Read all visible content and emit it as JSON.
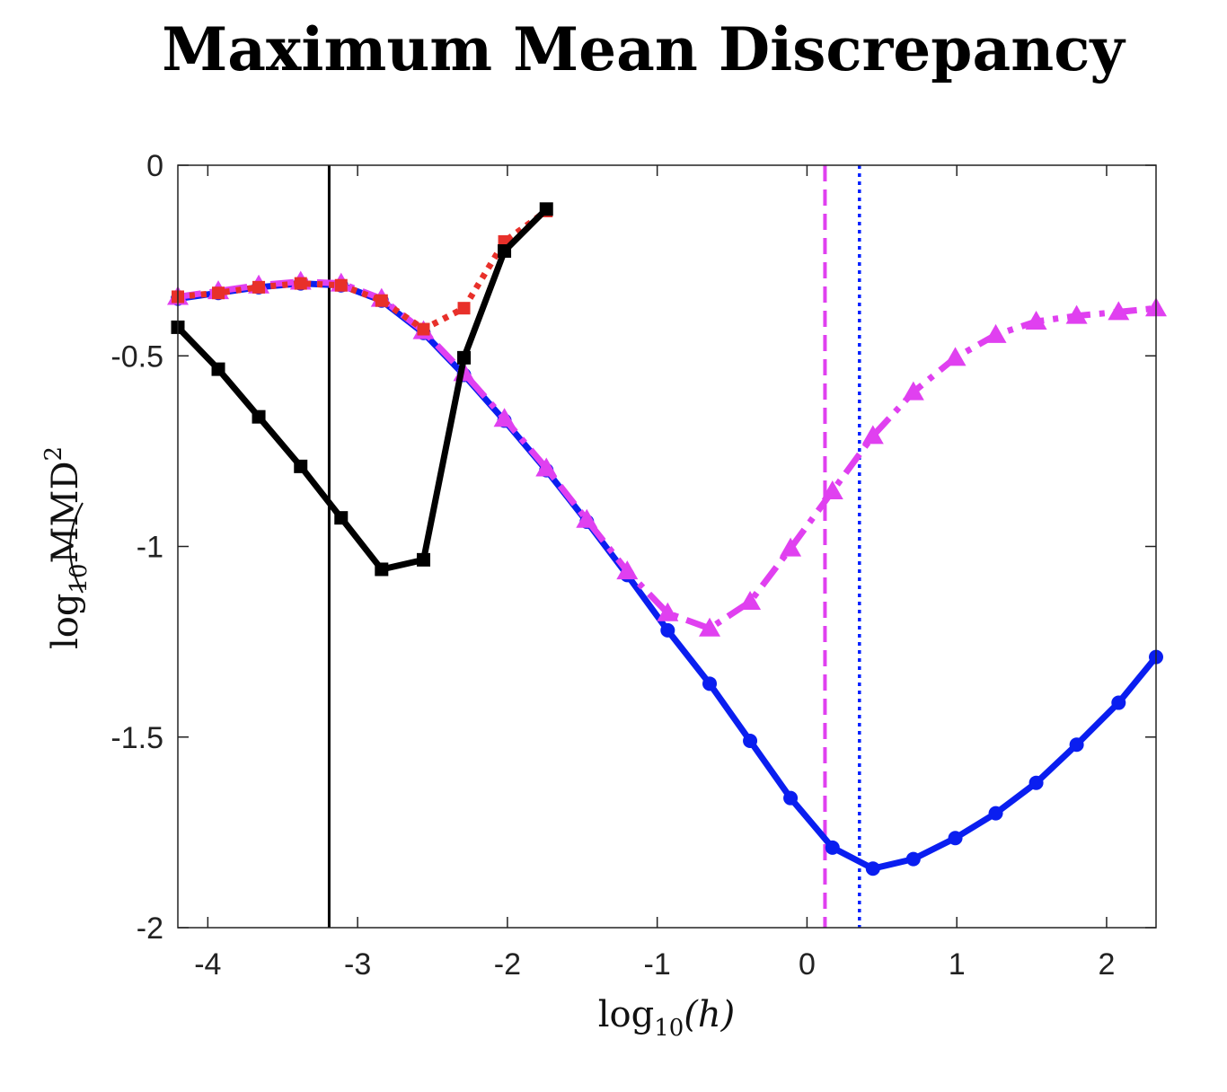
{
  "chart_data": {
    "type": "line",
    "title": "Maximum Mean Discrepancy",
    "xlabel": {
      "base": "log",
      "sub": "10",
      "arg": "(h)"
    },
    "ylabel": {
      "base": "log",
      "sub": "10",
      "arg": "MMD",
      "sup": "2"
    },
    "xlim": [
      -4.2,
      2.33
    ],
    "ylim": [
      -2,
      0
    ],
    "xticks": [
      -4,
      -3,
      -2,
      -1,
      0,
      1,
      2
    ],
    "xtick_labels": [
      "-4",
      "-3",
      "-2",
      "-1",
      "0",
      "1",
      "2"
    ],
    "yticks": [
      0,
      -0.5,
      -1,
      -1.5,
      -2
    ],
    "ytick_labels": [
      "0",
      "-0.5",
      "-1",
      "-1.5",
      "-2"
    ],
    "grid": false,
    "vertical_lines": [
      {
        "x": -3.19,
        "color": "#000000",
        "style": "solid"
      },
      {
        "x": 0.12,
        "color": "#e040f0",
        "style": "dashed"
      },
      {
        "x": 0.35,
        "color": "#0020ff",
        "style": "dotted"
      }
    ],
    "series": [
      {
        "name": "blue-circles",
        "color": "#0a1ef0",
        "marker": "circle",
        "style": "solid",
        "x": [
          -4.2,
          -3.93,
          -3.66,
          -3.38,
          -3.11,
          -2.84,
          -2.56,
          -2.29,
          -2.02,
          -1.74,
          -1.47,
          -1.2,
          -0.93,
          -0.65,
          -0.38,
          -0.11,
          0.17,
          0.44,
          0.71,
          0.99,
          1.26,
          1.53,
          1.8,
          2.08,
          2.33
        ],
        "values": [
          -0.35,
          -0.335,
          -0.32,
          -0.31,
          -0.315,
          -0.355,
          -0.44,
          -0.55,
          -0.67,
          -0.8,
          -0.935,
          -1.075,
          -1.22,
          -1.36,
          -1.51,
          -1.66,
          -1.79,
          -1.845,
          -1.82,
          -1.765,
          -1.7,
          -1.62,
          -1.52,
          -1.41,
          -1.29
        ]
      },
      {
        "name": "magenta-triangles",
        "color": "#e040f0",
        "marker": "triangle",
        "style": "dashdot",
        "x": [
          -4.2,
          -3.93,
          -3.66,
          -3.38,
          -3.11,
          -2.84,
          -2.56,
          -2.29,
          -2.02,
          -1.74,
          -1.47,
          -1.2,
          -0.93,
          -0.65,
          -0.38,
          -0.11,
          0.17,
          0.44,
          0.71,
          0.99,
          1.26,
          1.53,
          1.8,
          2.08,
          2.33
        ],
        "values": [
          -0.345,
          -0.33,
          -0.315,
          -0.305,
          -0.31,
          -0.35,
          -0.435,
          -0.545,
          -0.665,
          -0.795,
          -0.93,
          -1.065,
          -1.175,
          -1.215,
          -1.145,
          -1.005,
          -0.855,
          -0.71,
          -0.595,
          -0.505,
          -0.445,
          -0.41,
          -0.395,
          -0.385,
          -0.375
        ]
      },
      {
        "name": "red-squares",
        "color": "#e8302a",
        "marker": "square",
        "style": "dotted",
        "x": [
          -4.2,
          -3.93,
          -3.66,
          -3.38,
          -3.11,
          -2.84,
          -2.56,
          -2.29,
          -2.02,
          -1.74
        ],
        "values": [
          -0.345,
          -0.335,
          -0.32,
          -0.31,
          -0.315,
          -0.355,
          -0.43,
          -0.375,
          -0.2,
          -0.12
        ]
      },
      {
        "name": "black-squares",
        "color": "#000000",
        "marker": "square",
        "style": "solid",
        "x": [
          -4.2,
          -3.93,
          -3.66,
          -3.38,
          -3.11,
          -2.84,
          -2.56,
          -2.29,
          -2.02,
          -1.74
        ],
        "values": [
          -0.425,
          -0.535,
          -0.66,
          -0.79,
          -0.925,
          -1.06,
          -1.035,
          -0.505,
          -0.225,
          -0.115
        ]
      }
    ]
  }
}
